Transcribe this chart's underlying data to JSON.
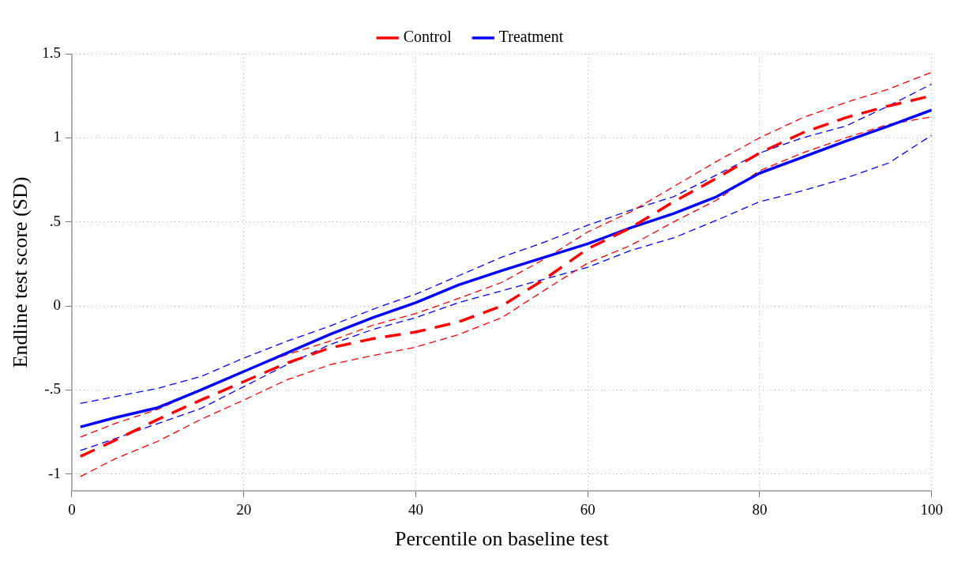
{
  "chart_data": {
    "type": "line",
    "xlabel": "Percentile on baseline test",
    "ylabel": "Endline test score (SD)",
    "x": [
      1,
      5,
      10,
      15,
      20,
      25,
      30,
      35,
      40,
      45,
      50,
      55,
      60,
      65,
      70,
      75,
      80,
      85,
      90,
      95,
      100
    ],
    "series": [
      {
        "name": "Control",
        "color": "#ff0000",
        "line_style": "dashed",
        "values": [
          -0.895,
          -0.8,
          -0.675,
          -0.56,
          -0.45,
          -0.34,
          -0.25,
          -0.195,
          -0.155,
          -0.095,
          0.0,
          0.16,
          0.34,
          0.465,
          0.62,
          0.76,
          0.91,
          1.03,
          1.12,
          1.19,
          1.25
        ]
      },
      {
        "name": "Treatment",
        "color": "#0000ff",
        "line_style": "solid",
        "values": [
          -0.72,
          -0.665,
          -0.605,
          -0.5,
          -0.39,
          -0.28,
          -0.17,
          -0.07,
          0.02,
          0.125,
          0.21,
          0.29,
          0.37,
          0.465,
          0.55,
          0.65,
          0.79,
          0.885,
          0.98,
          1.07,
          1.165
        ]
      },
      {
        "color": "#ff0000",
        "line_style": "dashed",
        "values": [
          -1.015,
          -0.91,
          -0.805,
          -0.675,
          -0.56,
          -0.44,
          -0.35,
          -0.295,
          -0.245,
          -0.17,
          -0.07,
          0.095,
          0.255,
          0.36,
          0.5,
          0.63,
          0.805,
          0.91,
          1.0,
          1.08,
          1.125
        ]
      },
      {
        "color": "#ff0000",
        "line_style": "dashed",
        "values": [
          -0.78,
          -0.7,
          -0.615,
          -0.5,
          -0.385,
          -0.29,
          -0.21,
          -0.115,
          -0.045,
          0.045,
          0.14,
          0.28,
          0.44,
          0.56,
          0.71,
          0.86,
          1.0,
          1.12,
          1.21,
          1.29,
          1.39
        ]
      },
      {
        "color": "#0000ff",
        "line_style": "dashed",
        "values": [
          -0.86,
          -0.79,
          -0.7,
          -0.61,
          -0.48,
          -0.35,
          -0.23,
          -0.14,
          -0.07,
          0.02,
          0.09,
          0.16,
          0.23,
          0.33,
          0.405,
          0.51,
          0.62,
          0.685,
          0.76,
          0.85,
          1.015
        ]
      },
      {
        "color": "#0000ff",
        "line_style": "dashed",
        "values": [
          -0.58,
          -0.54,
          -0.49,
          -0.42,
          -0.31,
          -0.21,
          -0.12,
          -0.02,
          0.07,
          0.18,
          0.29,
          0.38,
          0.48,
          0.57,
          0.65,
          0.78,
          0.91,
          1.0,
          1.07,
          1.19,
          1.32
        ]
      }
    ],
    "xlim": [
      0,
      100
    ],
    "xticks": [
      0,
      20,
      40,
      60,
      80,
      100
    ],
    "ylim": [
      -1.1,
      1.5
    ],
    "yticks": [
      {
        "value": -1,
        "label": "-1"
      },
      {
        "value": -0.5,
        "label": "-.5"
      },
      0,
      {
        "value": 0.5,
        "label": ".5"
      },
      1,
      {
        "value": 1.5,
        "label": "1.5"
      }
    ],
    "grid": true,
    "legend": "top",
    "marker": "none"
  }
}
